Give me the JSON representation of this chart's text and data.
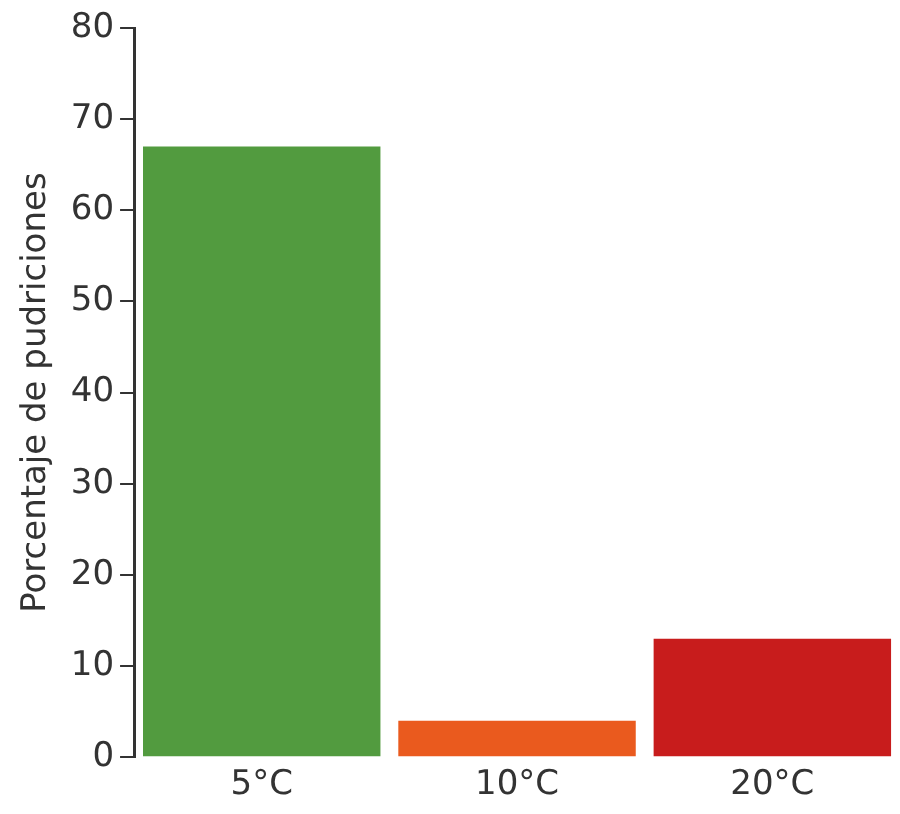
{
  "chart_data": {
    "type": "bar",
    "ylabel": "Porcentaje de pudriciones",
    "categories": [
      "5°C",
      "10°C",
      "20°C"
    ],
    "values": [
      67,
      4,
      13
    ],
    "colors": [
      "#529b3f",
      "#ea5a1e",
      "#c81c1c"
    ],
    "ylim": [
      0,
      80
    ],
    "yticks": [
      0,
      10,
      20,
      30,
      40,
      50,
      60,
      70,
      80
    ],
    "grid": false,
    "legend": false
  }
}
